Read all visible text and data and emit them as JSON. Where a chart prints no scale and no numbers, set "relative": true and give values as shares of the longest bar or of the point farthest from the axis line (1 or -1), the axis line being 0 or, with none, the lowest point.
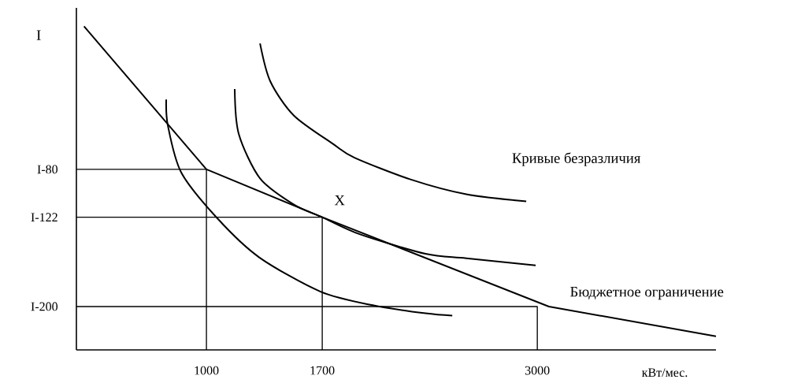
{
  "chart_data": {
    "type": "line",
    "relative": true,
    "xlabel": "кВт/мес.",
    "ylabel": "I",
    "xlim": [
      214,
      4080
    ],
    "xticks": [
      1000,
      1700,
      3000
    ],
    "grid": false,
    "marker": "none",
    "line_style": "solid",
    "series": [
      {
        "name": "Бюджетное ограничение",
        "color": "#000000",
        "x": [
          260,
          1000,
          1700,
          3070,
          4080
        ],
        "values": [
          1.0,
          0.558,
          0.41,
          0.134,
          0.042
        ]
      },
      {
        "color": "#000000",
        "x": [
          757,
          767,
          848,
          1067,
          1319,
          1690,
          2005,
          2324,
          2486
        ],
        "values": [
          0.774,
          0.693,
          0.548,
          0.406,
          0.286,
          0.18,
          0.138,
          0.113,
          0.106
        ]
      },
      {
        "color": "#000000",
        "x": [
          1171,
          1195,
          1324,
          1529,
          1700,
          1929,
          2324,
          2571,
          2990
        ],
        "values": [
          0.806,
          0.668,
          0.53,
          0.449,
          0.41,
          0.357,
          0.297,
          0.283,
          0.261
        ]
      },
      {
        "name": "Кривые безразличия",
        "color": "#000000",
        "x": [
          1324,
          1386,
          1529,
          1767,
          1895,
          2233,
          2571,
          2933
        ],
        "values": [
          0.947,
          0.83,
          0.724,
          0.636,
          0.594,
          0.527,
          0.481,
          0.459
        ]
      },
      {
        "color": "#000000",
        "x": [
          214,
          1000,
          1000
        ],
        "values": [
          0.558,
          0.558,
          0
        ]
      },
      {
        "color": "#000000",
        "x": [
          214,
          1700,
          1700
        ],
        "values": [
          0.41,
          0.41,
          0
        ]
      },
      {
        "color": "#000000",
        "x": [
          214,
          3000,
          3000
        ],
        "values": [
          0.134,
          0.134,
          0
        ]
      }
    ],
    "annotations": [
      "X",
      "I-80",
      "I-122",
      "I-200"
    ]
  }
}
